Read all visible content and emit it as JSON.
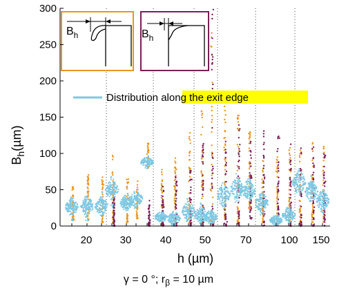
{
  "chart_data": {
    "type": "scatter",
    "ylabel": "Bh (µm)",
    "ylabel_main": "B",
    "ylabel_sub": "h",
    "ylabel_unit": "(µm)",
    "xlabel": "h (µm)",
    "ylim": [
      0,
      300
    ],
    "yticks": [
      0,
      50,
      100,
      150,
      200,
      250,
      300
    ],
    "xtick_labels": [
      "20",
      "30",
      "40",
      "50",
      "70",
      "100",
      "150"
    ],
    "grid": "dotted vertical separators between h groups",
    "legend": {
      "prefix": "Distribution ",
      "highlight": "along the exit edge",
      "highlight_color": "#ffff00",
      "line_color": "#7ec8e3"
    },
    "inset_label_main": "B",
    "inset_label_sub": "h",
    "colors": {
      "orange": "#e8961e",
      "purple": "#7a1e57",
      "blue": "#7ec8e3"
    },
    "group_centers": [
      20,
      30,
      40,
      50,
      70,
      100,
      150
    ],
    "columns": [
      {
        "group": 20,
        "orange": [
          8,
          58
        ],
        "blue_center": 26,
        "blue_spread": 10
      },
      {
        "group": 20,
        "orange": [
          8,
          72
        ],
        "blue_center": 28,
        "blue_spread": 12
      },
      {
        "group": 20,
        "orange": [
          5,
          68
        ],
        "blue_center": 27,
        "blue_spread": 11
      },
      {
        "group": 30,
        "orange": [
          5,
          100
        ],
        "purple": [
          0,
          40
        ],
        "blue_center": 50,
        "blue_spread": 12
      },
      {
        "group": 30,
        "orange": [
          5,
          65
        ],
        "blue_center": 32,
        "blue_spread": 9
      },
      {
        "group": 30,
        "orange": [
          10,
          65
        ],
        "blue_center": 37,
        "blue_spread": 10
      },
      {
        "group": 40,
        "orange": [
          80,
          115
        ],
        "purple": [
          0,
          35
        ],
        "blue_center": 88,
        "blue_spread": 6
      },
      {
        "group": 40,
        "orange": [
          0,
          80
        ],
        "purple": [
          0,
          55
        ],
        "blue_center": 12,
        "blue_spread": 6
      },
      {
        "group": 40,
        "orange": [
          5,
          95
        ],
        "purple": [
          0,
          70
        ],
        "blue_center": 10,
        "blue_spread": 8
      },
      {
        "group": 50,
        "orange": [
          5,
          130
        ],
        "purple": [
          0,
          80
        ],
        "blue_center": 20,
        "blue_spread": 12
      },
      {
        "group": 50,
        "orange": [
          0,
          160
        ],
        "purple": [
          0,
          120
        ],
        "blue_center": 15,
        "blue_spread": 10
      },
      {
        "group": 50,
        "orange": [
          5,
          300
        ],
        "purple": [
          0,
          300
        ],
        "blue_center": 12,
        "blue_spread": 8
      },
      {
        "group": 70,
        "orange": [
          10,
          165
        ],
        "purple": [
          0,
          120
        ],
        "blue_center": 42,
        "blue_spread": 14
      },
      {
        "group": 70,
        "orange": [
          5,
          160
        ],
        "purple": [
          0,
          140
        ],
        "blue_center": 50,
        "blue_spread": 14
      },
      {
        "group": 70,
        "orange": [
          20,
          130
        ],
        "purple": [
          10,
          125
        ],
        "blue_center": 48,
        "blue_spread": 12
      },
      {
        "group": 100,
        "orange": [
          5,
          90
        ],
        "purple": [
          0,
          140
        ],
        "blue_center": 32,
        "blue_spread": 12
      },
      {
        "group": 100,
        "orange": [
          5,
          110
        ],
        "purple": [
          0,
          130
        ],
        "blue_center": 8,
        "blue_spread": 6
      },
      {
        "group": 100,
        "orange": [
          5,
          110
        ],
        "purple": [
          0,
          125
        ],
        "blue_center": 15,
        "blue_spread": 8
      },
      {
        "group": 150,
        "orange": [
          5,
          110
        ],
        "purple": [
          0,
          108
        ],
        "blue_center": 60,
        "blue_spread": 14
      },
      {
        "group": 150,
        "orange": [
          5,
          115
        ],
        "purple": [
          0,
          110
        ],
        "blue_center": 48,
        "blue_spread": 12
      },
      {
        "group": 150,
        "orange": [
          5,
          120
        ],
        "purple": [
          0,
          115
        ],
        "blue_center": 35,
        "blue_spread": 12
      }
    ]
  },
  "caption": {
    "pre": "γ = 0 °; r",
    "sub": "β",
    "post": " = 10 µm"
  }
}
